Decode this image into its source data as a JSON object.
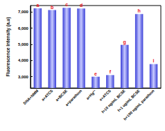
{
  "chart_data": {
    "type": "bar",
    "y_label": "Fluorescence Intensity (a.u)",
    "categories": [
      "DNA+NMM",
      "a+ATCS",
      "a+BCSE",
      "a+parathion",
      "a+Hg²⁺",
      "e+ATCS",
      "f+10 ng/mL BCSE",
      "f+1 ug/mL BCSE",
      "h+100 ng/mL parathion"
    ],
    "values": [
      7230,
      7120,
      7260,
      7220,
      3000,
      3100,
      4970,
      6880,
      3780
    ],
    "annotations": [
      "a",
      "b",
      "c",
      "d",
      "e",
      "f",
      "g",
      "h",
      "i"
    ],
    "annotation_color": "#e8141c",
    "color": "#3a3fd8",
    "ylim": [
      2300,
      7400
    ],
    "yticks": [
      3000,
      4000,
      5000,
      6000,
      7000
    ],
    "grid": false
  }
}
